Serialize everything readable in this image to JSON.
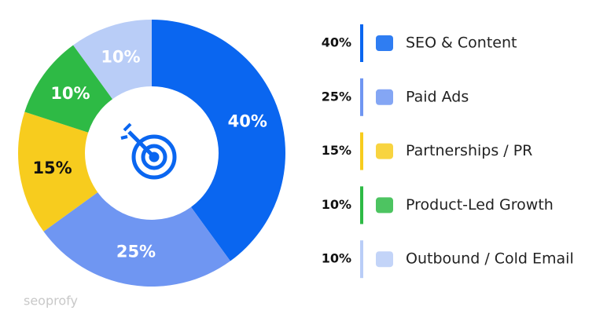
{
  "chart_data": {
    "type": "donut",
    "categories": [
      "SEO & Content",
      "Paid Ads",
      "Partnerships / PR",
      "Product-Led Growth",
      "Outbound / Cold Email"
    ],
    "values": [
      40,
      25,
      15,
      10,
      10
    ],
    "value_labels": [
      "40%",
      "25%",
      "15%",
      "10%",
      "10%"
    ],
    "colors": [
      "#0a66f0",
      "#6f96f2",
      "#f7cc1e",
      "#2eba45",
      "#b9cdf7"
    ],
    "label_colors": [
      "#ffffff",
      "#ffffff",
      "#111111",
      "#ffffff",
      "#ffffff"
    ],
    "legend": "right",
    "watermark": "seoprofy"
  }
}
